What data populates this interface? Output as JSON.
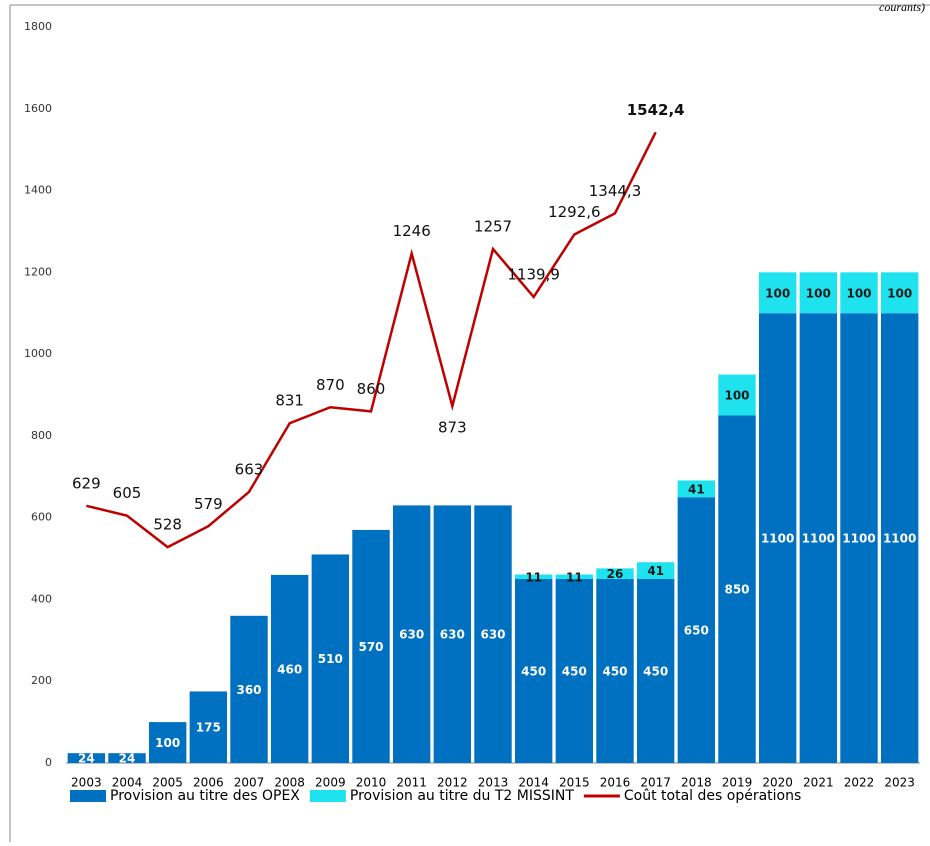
{
  "chart_data": {
    "type": "bar_line",
    "note": "courants)",
    "categories": [
      "2003",
      "2004",
      "2005",
      "2006",
      "2007",
      "2008",
      "2009",
      "2010",
      "2011",
      "2012",
      "2013",
      "2014",
      "2015",
      "2016",
      "2017",
      "2018",
      "2019",
      "2020",
      "2021",
      "2022",
      "2023"
    ],
    "ylim": [
      0,
      1800
    ],
    "yticks": [
      0,
      200,
      400,
      600,
      800,
      1000,
      1200,
      1400,
      1600,
      1800
    ],
    "grid": false,
    "legend": "bottom",
    "series": [
      {
        "name": "Provision au titre des OPEX",
        "type": "bar",
        "color": "#0070c0",
        "label_color": "#ffffff",
        "values": [
          24,
          24,
          100,
          175,
          360,
          460,
          510,
          570,
          630,
          630,
          630,
          450,
          450,
          450,
          450,
          650,
          850,
          1100,
          1100,
          1100,
          1100
        ]
      },
      {
        "name": "Provision au titre du T2 MISSINT",
        "type": "bar",
        "color": "#1ee3ef",
        "label_color": "#1a1a1a",
        "values": [
          null,
          null,
          null,
          null,
          null,
          null,
          null,
          null,
          null,
          null,
          null,
          11,
          11,
          26,
          41,
          41,
          100,
          100,
          100,
          100,
          100
        ]
      },
      {
        "name": "Coût total des opérations",
        "type": "line",
        "color": "#c00000",
        "values": [
          629,
          605,
          528,
          579,
          663,
          831,
          870,
          860,
          1246,
          873,
          1257,
          1139.9,
          1292.6,
          1344.3,
          1542.4,
          null,
          null,
          null,
          null,
          null,
          null
        ],
        "value_labels": [
          "629",
          "605",
          "528",
          "579",
          "663",
          "831",
          "870",
          "860",
          "1246",
          "873",
          "1257",
          "1139,9",
          "1292,6",
          "1344,3",
          "1542,4",
          null,
          null,
          null,
          null,
          null,
          null
        ]
      }
    ]
  }
}
